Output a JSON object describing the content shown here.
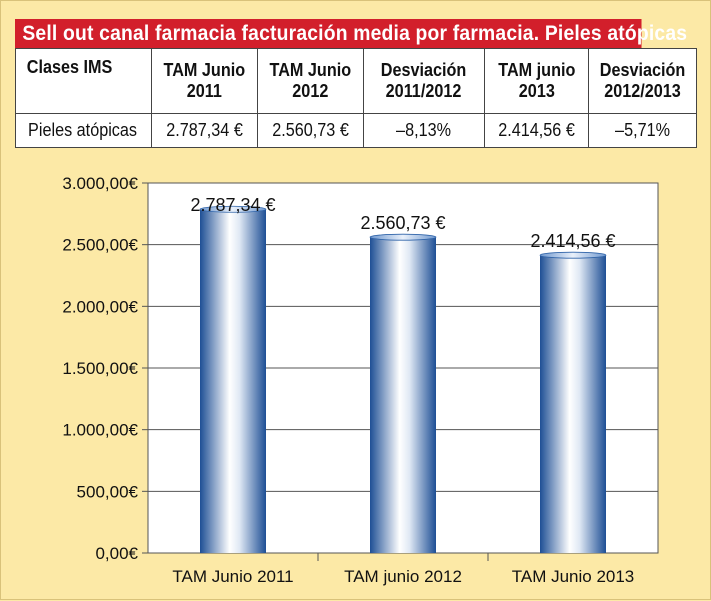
{
  "title": "Sell out canal farmacia facturación media por farmacia. Pieles atópicas",
  "table": {
    "headers": [
      "Clases IMS",
      "TAM Junio\n2011",
      "TAM Junio\n2012",
      "Desviación\n2011/2012",
      "TAM junio\n2013",
      "Desviación\n2012/2013"
    ],
    "row": [
      "Pieles atópicas",
      "2.787,34 €",
      "2.560,73 €",
      "–8,13%",
      "2.414,56 €",
      "–5,71%"
    ]
  },
  "colors": {
    "title_bg": "#d21f2b",
    "bar": "#2f63a8",
    "background": "#fce9a6"
  },
  "chart_data": {
    "type": "bar",
    "categories": [
      "TAM Junio 2011",
      "TAM junio 2012",
      "TAM Junio 2013"
    ],
    "values": [
      2787.34,
      2560.73,
      2414.56
    ],
    "data_labels": [
      "2.787,34 €",
      "2.560,73 €",
      "2.414,56 €"
    ],
    "yticks": [
      "0,00€",
      "500,00€",
      "1.000,00€",
      "1.500,00€",
      "2.000,00€",
      "2.500,00€",
      "3.000,00€"
    ],
    "ylim": [
      0,
      3000
    ],
    "grid": true,
    "title": "",
    "xlabel": "",
    "ylabel": ""
  }
}
